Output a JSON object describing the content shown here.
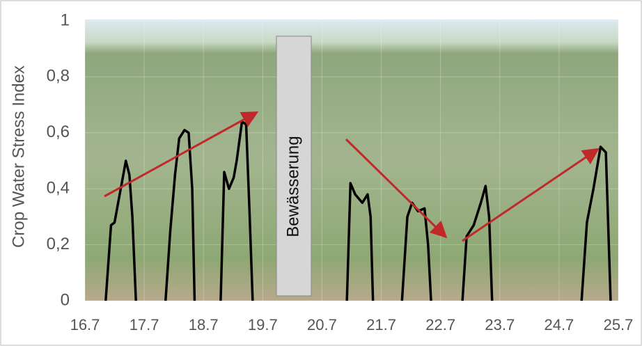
{
  "chart_data": {
    "type": "line",
    "y_label": "Crop Water Stress Index",
    "annotation": "Bewässerung",
    "xlim": [
      16.7,
      25.7
    ],
    "xticks": [
      16.7,
      17.7,
      18.7,
      19.7,
      20.7,
      21.7,
      22.7,
      23.7,
      24.7,
      25.7
    ],
    "ylim": [
      0,
      1
    ],
    "yticks": [
      {
        "value": 0,
        "label": "0"
      },
      {
        "value": 0.2,
        "label": "0,2"
      },
      {
        "value": 0.4,
        "label": "0,4"
      },
      {
        "value": 0.6,
        "label": "0,6"
      },
      {
        "value": 0.8,
        "label": "0,8"
      },
      {
        "value": 1,
        "label": "1"
      }
    ],
    "series": [
      {
        "color": "#000000",
        "x": [
          17.05,
          17.14,
          17.2,
          17.26,
          17.33,
          17.39,
          17.45,
          17.5,
          17.56
        ],
        "values": [
          0,
          0.27,
          0.28,
          0.35,
          0.43,
          0.5,
          0.45,
          0.3,
          0
        ]
      },
      {
        "color": "#000000",
        "x": [
          18.06,
          18.14,
          18.22,
          18.29,
          18.38,
          18.45,
          18.51,
          18.55
        ],
        "values": [
          0,
          0.25,
          0.45,
          0.58,
          0.61,
          0.6,
          0.4,
          0
        ]
      },
      {
        "color": "#000000",
        "x": [
          18.99,
          19.05,
          19.13,
          19.21,
          19.26,
          19.35,
          19.42,
          19.48,
          19.53
        ],
        "values": [
          0,
          0.46,
          0.4,
          0.44,
          0.5,
          0.64,
          0.63,
          0.3,
          0
        ]
      },
      {
        "color": "#000000",
        "x": [
          21.12,
          21.18,
          21.26,
          21.38,
          21.47,
          21.52,
          21.56
        ],
        "values": [
          0,
          0.42,
          0.38,
          0.35,
          0.38,
          0.3,
          0
        ]
      },
      {
        "color": "#000000",
        "x": [
          22.05,
          22.14,
          22.22,
          22.32,
          22.43,
          22.49,
          22.54
        ],
        "values": [
          0,
          0.3,
          0.35,
          0.32,
          0.33,
          0.2,
          0
        ]
      },
      {
        "color": "#000000",
        "x": [
          23.07,
          23.14,
          23.26,
          23.38,
          23.46,
          23.52,
          23.57
        ],
        "values": [
          0,
          0.23,
          0.27,
          0.35,
          0.41,
          0.3,
          0
        ]
      },
      {
        "color": "#000000",
        "x": [
          25.08,
          25.17,
          25.28,
          25.4,
          25.49,
          25.57
        ],
        "values": [
          0,
          0.28,
          0.4,
          0.55,
          0.53,
          0
        ]
      }
    ]
  }
}
